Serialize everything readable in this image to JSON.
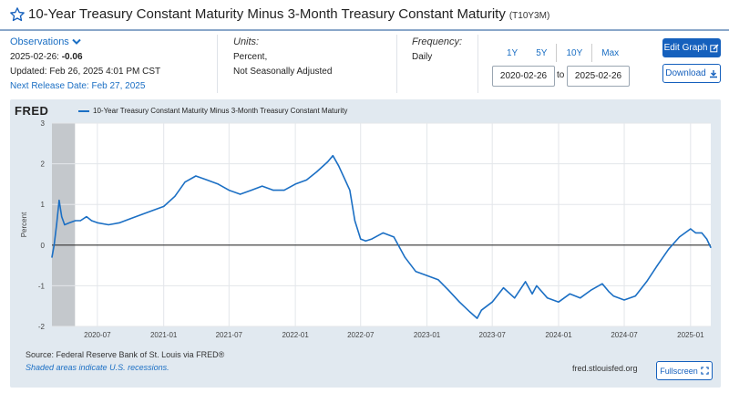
{
  "header": {
    "title": "10-Year Treasury Constant Maturity Minus 3-Month Treasury Constant Maturity",
    "series_id": "(T10Y3M)",
    "star_icon": "star-outline-icon"
  },
  "meta": {
    "observations_label": "Observations",
    "obs_date": "2025-02-26:",
    "obs_value": "-0.06",
    "updated": "Updated: Feb 26, 2025 4:01 PM CST",
    "next_release": "Next Release Date: Feb 27, 2025",
    "units_label": "Units:",
    "units_1": "Percent,",
    "units_2": "Not Seasonally Adjusted",
    "frequency_label": "Frequency:",
    "frequency": "Daily"
  },
  "controls": {
    "ranges": [
      "1Y",
      "5Y",
      "10Y",
      "Max"
    ],
    "start_date": "2020-02-26",
    "to": "to",
    "end_date": "2025-02-26",
    "edit_graph": "Edit Graph",
    "download": "Download",
    "fullscreen": "Fullscreen"
  },
  "panel": {
    "logo": "FRED",
    "source": "Source: Federal Reserve Bank of St. Louis via FRED®",
    "shaded_note": "Shaded areas indicate U.S. recessions.",
    "site": "fred.stlouisfed.org"
  },
  "colors": {
    "accent": "#1560bd",
    "line": "#1b6fc4",
    "recession": "#c4c8cc"
  },
  "chart_data": {
    "type": "line",
    "title": "",
    "legend": "10-Year Treasury Constant Maturity Minus 3-Month Treasury Constant Maturity",
    "ylabel": "Percent",
    "xlabel": "",
    "ylim": [
      -2,
      3
    ],
    "yticks": [
      -2,
      -1,
      0,
      1,
      2,
      3
    ],
    "xticks": [
      "2020-07",
      "2021-01",
      "2021-07",
      "2022-01",
      "2022-07",
      "2023-01",
      "2023-07",
      "2024-01",
      "2024-07",
      "2025-01"
    ],
    "recession": [
      "2020-02-26",
      "2020-04-30"
    ],
    "series": [
      {
        "name": "10-Year Treasury Constant Maturity Minus 3-Month Treasury Constant Maturity",
        "x": [
          "2020-02-26",
          "2020-03-03",
          "2020-03-10",
          "2020-03-17",
          "2020-03-24",
          "2020-04-01",
          "2020-04-15",
          "2020-05-01",
          "2020-05-15",
          "2020-06-01",
          "2020-06-15",
          "2020-07-01",
          "2020-08-01",
          "2020-09-01",
          "2020-10-01",
          "2020-11-01",
          "2020-12-01",
          "2021-01-01",
          "2021-02-01",
          "2021-03-01",
          "2021-03-31",
          "2021-05-01",
          "2021-06-01",
          "2021-07-01",
          "2021-08-01",
          "2021-09-01",
          "2021-10-01",
          "2021-11-01",
          "2021-12-01",
          "2022-01-01",
          "2022-02-01",
          "2022-03-01",
          "2022-04-01",
          "2022-04-15",
          "2022-05-01",
          "2022-06-01",
          "2022-06-15",
          "2022-07-01",
          "2022-07-15",
          "2022-08-01",
          "2022-09-01",
          "2022-10-01",
          "2022-11-01",
          "2022-12-01",
          "2023-01-01",
          "2023-02-01",
          "2023-03-01",
          "2023-04-01",
          "2023-05-01",
          "2023-05-20",
          "2023-06-01",
          "2023-07-01",
          "2023-08-01",
          "2023-09-01",
          "2023-10-01",
          "2023-10-20",
          "2023-11-01",
          "2023-12-01",
          "2024-01-01",
          "2024-02-01",
          "2024-03-01",
          "2024-04-01",
          "2024-05-01",
          "2024-05-20",
          "2024-06-01",
          "2024-07-01",
          "2024-08-01",
          "2024-09-01",
          "2024-10-01",
          "2024-11-01",
          "2024-12-01",
          "2025-01-01",
          "2025-01-15",
          "2025-02-01",
          "2025-02-15",
          "2025-02-26"
        ],
        "values": [
          -0.3,
          0.0,
          0.5,
          1.1,
          0.7,
          0.5,
          0.55,
          0.6,
          0.6,
          0.7,
          0.6,
          0.55,
          0.5,
          0.55,
          0.65,
          0.75,
          0.85,
          0.95,
          1.2,
          1.55,
          1.7,
          1.6,
          1.5,
          1.35,
          1.25,
          1.35,
          1.45,
          1.35,
          1.35,
          1.5,
          1.6,
          1.8,
          2.05,
          2.2,
          1.95,
          1.35,
          0.6,
          0.15,
          0.1,
          0.15,
          0.3,
          0.2,
          -0.3,
          -0.65,
          -0.75,
          -0.85,
          -1.1,
          -1.4,
          -1.65,
          -1.8,
          -1.6,
          -1.4,
          -1.05,
          -1.3,
          -0.9,
          -1.2,
          -1.0,
          -1.3,
          -1.4,
          -1.2,
          -1.3,
          -1.1,
          -0.95,
          -1.15,
          -1.25,
          -1.35,
          -1.25,
          -0.9,
          -0.5,
          -0.1,
          0.2,
          0.4,
          0.3,
          0.3,
          0.15,
          -0.06
        ]
      }
    ]
  }
}
